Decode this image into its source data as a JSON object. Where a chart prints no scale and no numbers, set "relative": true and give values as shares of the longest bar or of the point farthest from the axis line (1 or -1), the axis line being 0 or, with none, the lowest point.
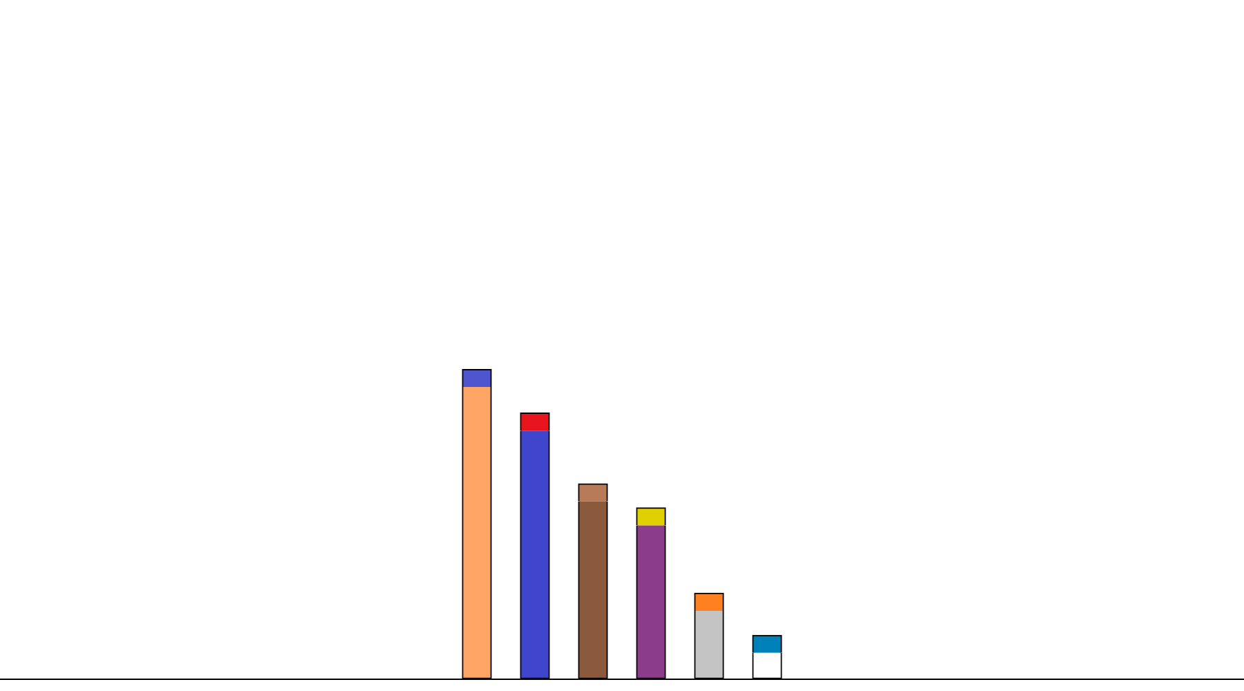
{
  "chart_data": {
    "type": "bar",
    "stacked": true,
    "relative": true,
    "legend": false,
    "grid": false,
    "categories": [
      null,
      null,
      null,
      null,
      null,
      null
    ],
    "series": [
      {
        "colors": [
          "#ffa566",
          "#3f46cc",
          "#8b5a3c",
          "#8b3d8b",
          "#c4c4c4",
          "#ffffff"
        ],
        "values": [
          0.943,
          0.802,
          0.573,
          0.495,
          0.219,
          0.083
        ]
      },
      {
        "colors": [
          "#4f55cf",
          "#e8141e",
          "#b77b5a",
          "#e0d000",
          "#ff8020",
          "#0080b8"
        ],
        "values": [
          0.057,
          0.057,
          0.057,
          0.057,
          0.057,
          0.057
        ]
      }
    ]
  }
}
